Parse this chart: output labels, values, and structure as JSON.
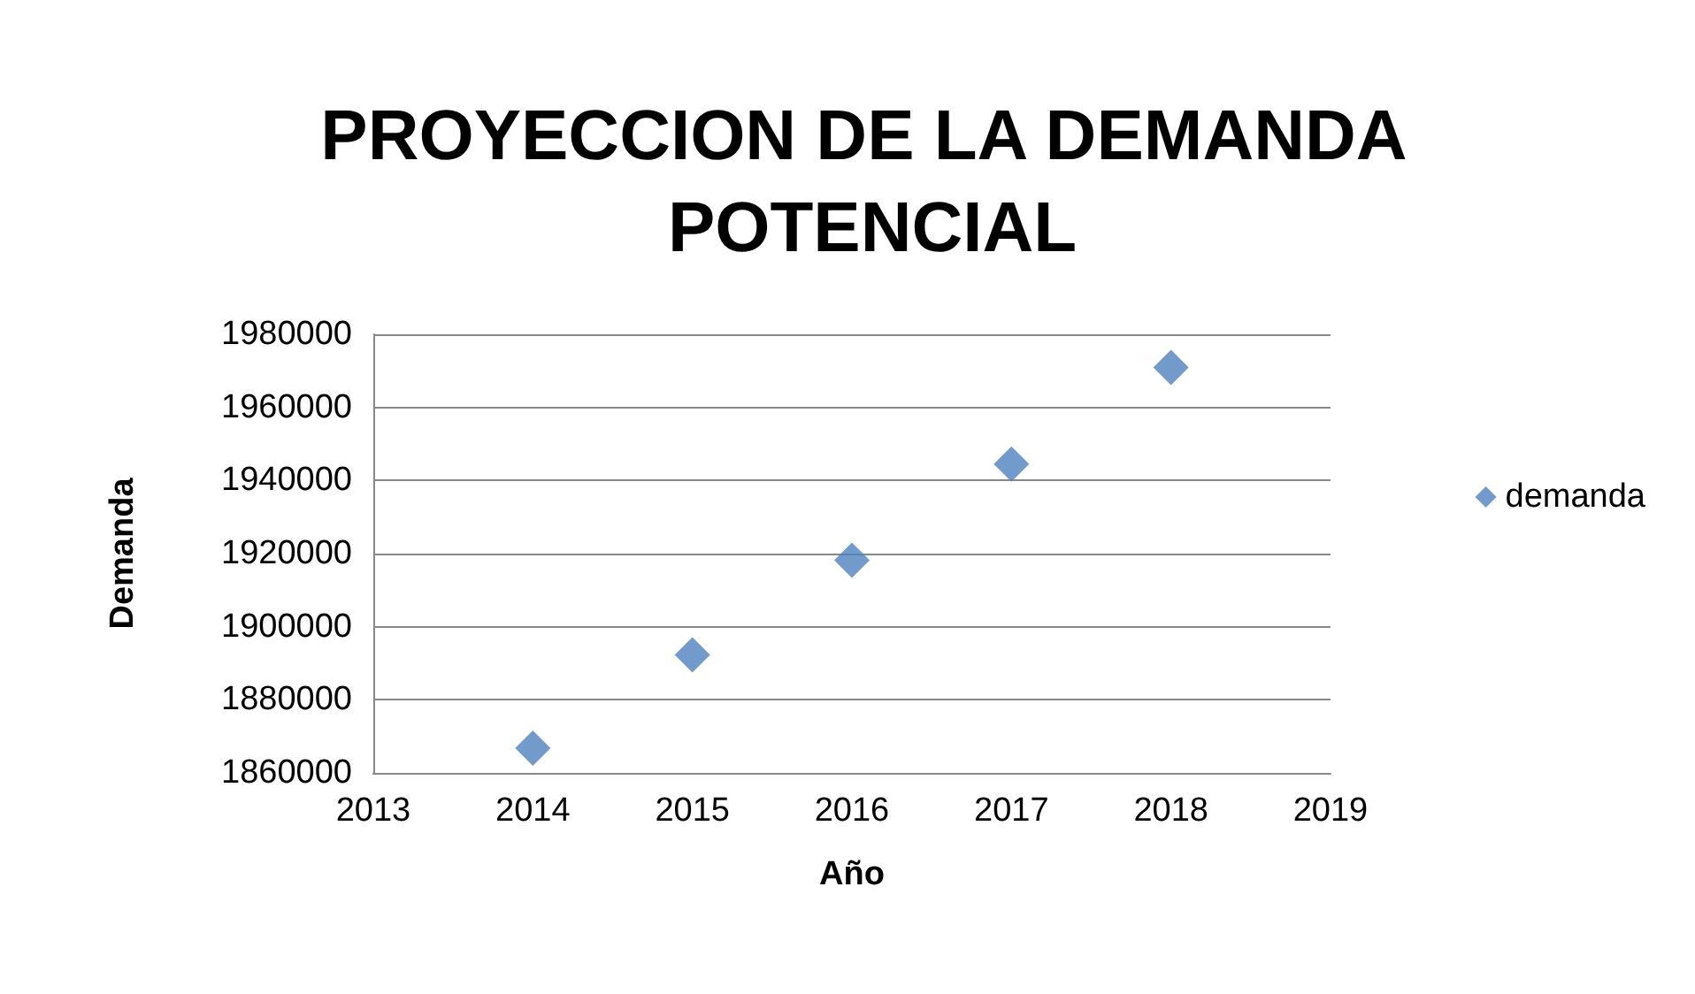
{
  "chart_data": {
    "type": "scatter",
    "title": "PROYECCION DE LA DEMANDA POTENCIAL",
    "xlabel": "Año",
    "ylabel": "Demanda",
    "x": [
      2014,
      2015,
      2016,
      2017,
      2018
    ],
    "series": [
      {
        "name": "demanda",
        "color": "#4f81bd",
        "values": [
          1866800,
          1892300,
          1918200,
          1944500,
          1970900
        ]
      }
    ],
    "xlim": [
      2013,
      2019
    ],
    "xticks": [
      2013,
      2014,
      2015,
      2016,
      2017,
      2018,
      2019
    ],
    "ylim": [
      1860000,
      1980000
    ],
    "yticks": [
      1860000,
      1880000,
      1900000,
      1920000,
      1940000,
      1960000,
      1980000
    ],
    "grid": "y",
    "legend": "right",
    "marker": "diamond"
  }
}
